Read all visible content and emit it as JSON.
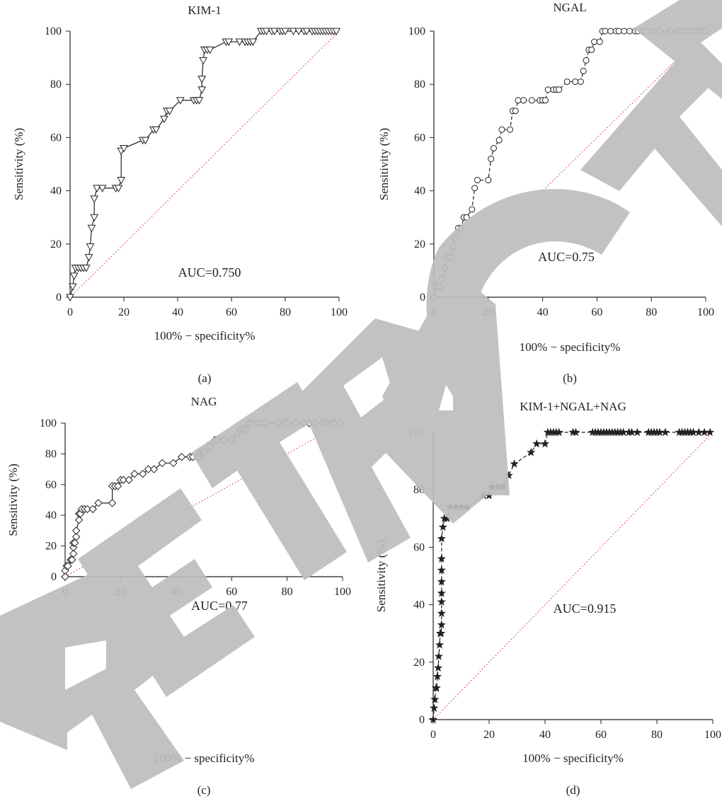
{
  "watermark": "RETRACTED",
  "colors": {
    "curve": "#222222",
    "reference": "#e03030",
    "axis": "#222222",
    "watermark": "#bdbdbd"
  },
  "chart_data": [
    {
      "id": "a",
      "type": "line",
      "panel_label": "(a)",
      "title": "KIM-1",
      "xlabel": "100% − specificity%",
      "ylabel": "Sensitivity (%)",
      "xlim": [
        0,
        100
      ],
      "ylim": [
        0,
        100
      ],
      "xticks": [
        "0",
        "20",
        "40",
        "60",
        "80",
        "100"
      ],
      "yticks": [
        "0",
        "20",
        "40",
        "60",
        "80",
        "100"
      ],
      "annotation": "AUC=0.750",
      "marker": "triangle-down",
      "line_style": "solid",
      "reference_line": true,
      "series": [
        {
          "x": [
            0,
            1,
            1.5,
            2,
            3,
            4,
            5,
            6,
            7,
            7.5,
            8,
            9,
            9,
            10,
            12,
            17,
            18,
            19,
            19,
            20,
            27,
            28,
            31,
            32,
            35,
            36,
            37,
            41,
            46,
            47,
            48,
            49,
            49,
            49.5,
            50,
            50,
            51,
            52,
            58,
            59,
            63,
            65,
            66,
            67,
            68,
            71,
            72,
            73,
            75,
            76,
            78,
            79,
            80,
            83,
            85,
            87,
            88,
            90,
            91,
            92,
            93,
            94,
            95,
            96,
            97,
            98,
            99
          ],
          "y": [
            0,
            4,
            8,
            11,
            11,
            11,
            11,
            11,
            15,
            19,
            26,
            30,
            37,
            41,
            41,
            41,
            41,
            44,
            55,
            56,
            59,
            59,
            63,
            63,
            67,
            70,
            70,
            74,
            74,
            74,
            74,
            78,
            82,
            89,
            93,
            93,
            93,
            93,
            96,
            96,
            96,
            96,
            96,
            96,
            96,
            100,
            100,
            100,
            100,
            100,
            100,
            100,
            100,
            100,
            100,
            100,
            100,
            100,
            100,
            100,
            100,
            100,
            100,
            100,
            100,
            100,
            100
          ]
        }
      ]
    },
    {
      "id": "b",
      "type": "line",
      "panel_label": "(b)",
      "title": "NGAL",
      "xlabel": "100% − specificity%",
      "ylabel": "Sensitivity (%)",
      "xlim": [
        0,
        100
      ],
      "ylim": [
        0,
        100
      ],
      "xticks": [
        "0",
        "20",
        "40",
        "60",
        "80",
        "100"
      ],
      "yticks": [
        "0",
        "20",
        "40",
        "60",
        "80",
        "100"
      ],
      "annotation": "AUC=0.75",
      "marker": "circle",
      "line_style": "dashed",
      "reference_line": true,
      "series": [
        {
          "x": [
            0,
            1,
            2,
            3,
            4,
            5,
            6,
            7,
            8,
            9,
            10,
            11,
            12,
            14,
            15,
            16,
            20,
            21,
            22,
            24,
            25,
            28,
            29,
            30,
            31,
            33,
            36,
            39,
            40,
            41,
            42,
            44,
            45,
            46,
            49,
            52,
            54,
            55,
            56,
            57,
            58,
            59,
            61,
            62,
            63,
            65,
            67,
            68,
            70,
            72,
            74,
            75,
            77,
            78,
            80,
            82,
            83,
            87,
            90,
            91,
            93,
            94,
            95,
            97,
            98,
            99,
            100
          ],
          "y": [
            0,
            4,
            4,
            7,
            11,
            15,
            15,
            19,
            22,
            26,
            26,
            30,
            30,
            33,
            41,
            44,
            44,
            52,
            56,
            59,
            63,
            63,
            70,
            70,
            74,
            74,
            74,
            74,
            74,
            74,
            78,
            78,
            78,
            78,
            81,
            81,
            81,
            85,
            89,
            93,
            93,
            96,
            96,
            100,
            100,
            100,
            100,
            100,
            100,
            100,
            100,
            100,
            100,
            100,
            100,
            100,
            100,
            100,
            100,
            100,
            100,
            100,
            100,
            100,
            100,
            100,
            100
          ]
        }
      ]
    },
    {
      "id": "c",
      "type": "line",
      "panel_label": "(c)",
      "title": "NAG",
      "xlabel": "100% − specificity%",
      "ylabel": "Sensitivity (%)",
      "xlim": [
        0,
        100
      ],
      "ylim": [
        0,
        100
      ],
      "xticks": [
        "0",
        "20",
        "40",
        "60",
        "80",
        "100"
      ],
      "yticks": [
        "0",
        "20",
        "40",
        "60",
        "80",
        "100"
      ],
      "annotation": "AUC=0.77",
      "marker": "diamond",
      "line_style": "solid",
      "reference_line": true,
      "series": [
        {
          "x": [
            0,
            0,
            0.5,
            1,
            2,
            2.5,
            3,
            3,
            3,
            3.5,
            4,
            4,
            5,
            5,
            5.5,
            6,
            7,
            8,
            10,
            12,
            17,
            17,
            18,
            19,
            20,
            21,
            23,
            25,
            28,
            30,
            32,
            35,
            39,
            42,
            45,
            46,
            48,
            49,
            50,
            52,
            54,
            55,
            57,
            60,
            62,
            63,
            64,
            65,
            66,
            67,
            69,
            70,
            72,
            77,
            79,
            80,
            83,
            86,
            88,
            90,
            93,
            94,
            96,
            97,
            99
          ],
          "y": [
            0,
            4,
            7,
            7,
            11,
            11,
            15,
            19,
            22,
            22,
            26,
            30,
            37,
            41,
            41,
            44,
            44,
            44,
            44,
            48,
            48,
            59,
            59,
            59,
            63,
            63,
            63,
            67,
            67,
            70,
            70,
            74,
            74,
            78,
            78,
            78,
            78,
            81,
            81,
            85,
            89,
            89,
            89,
            89,
            93,
            96,
            96,
            96,
            100,
            100,
            100,
            100,
            100,
            100,
            100,
            100,
            100,
            100,
            100,
            100,
            100,
            100,
            100,
            100,
            100
          ]
        }
      ]
    },
    {
      "id": "d",
      "type": "line",
      "panel_label": "(d)",
      "title": "KIM-1+NGAL+NAG",
      "xlabel": "100% − specificity%",
      "ylabel": "Sensitivity (%)",
      "xlim": [
        0,
        100
      ],
      "ylim": [
        0,
        100
      ],
      "xticks": [
        "0",
        "20",
        "40",
        "60",
        "80",
        "100"
      ],
      "yticks": [
        "0",
        "20",
        "40",
        "60",
        "80",
        "100"
      ],
      "annotation": "AUC=0.915",
      "marker": "star",
      "line_style": "dashed",
      "reference_line": true,
      "series": [
        {
          "x": [
            0,
            0.3,
            0.6,
            1,
            1.2,
            1.5,
            1.8,
            2,
            2.3,
            2.5,
            2.8,
            3,
            3,
            3,
            3,
            3,
            3,
            3,
            3,
            3.5,
            4,
            5,
            6,
            8,
            10,
            12,
            18,
            20,
            21,
            23,
            25,
            27,
            29,
            35,
            37,
            40,
            41,
            42,
            43,
            44,
            45,
            50,
            51,
            57,
            58,
            59,
            60,
            61,
            62,
            63,
            64,
            65,
            66,
            67,
            68,
            70,
            71,
            73,
            77,
            78,
            79,
            80,
            81,
            83,
            88,
            89,
            90,
            91,
            92,
            93,
            95,
            97,
            99
          ],
          "y": [
            0,
            4,
            7,
            11,
            11,
            15,
            18,
            22,
            26,
            30,
            30,
            33,
            37,
            41,
            44,
            48,
            52,
            56,
            63,
            67,
            70,
            70,
            74,
            74,
            74,
            74,
            78,
            78,
            81,
            81,
            81,
            85,
            89,
            93,
            96,
            96,
            100,
            100,
            100,
            100,
            100,
            100,
            100,
            100,
            100,
            100,
            100,
            100,
            100,
            100,
            100,
            100,
            100,
            100,
            100,
            100,
            100,
            100,
            100,
            100,
            100,
            100,
            100,
            100,
            100,
            100,
            100,
            100,
            100,
            100,
            100,
            100,
            100
          ]
        }
      ]
    }
  ]
}
